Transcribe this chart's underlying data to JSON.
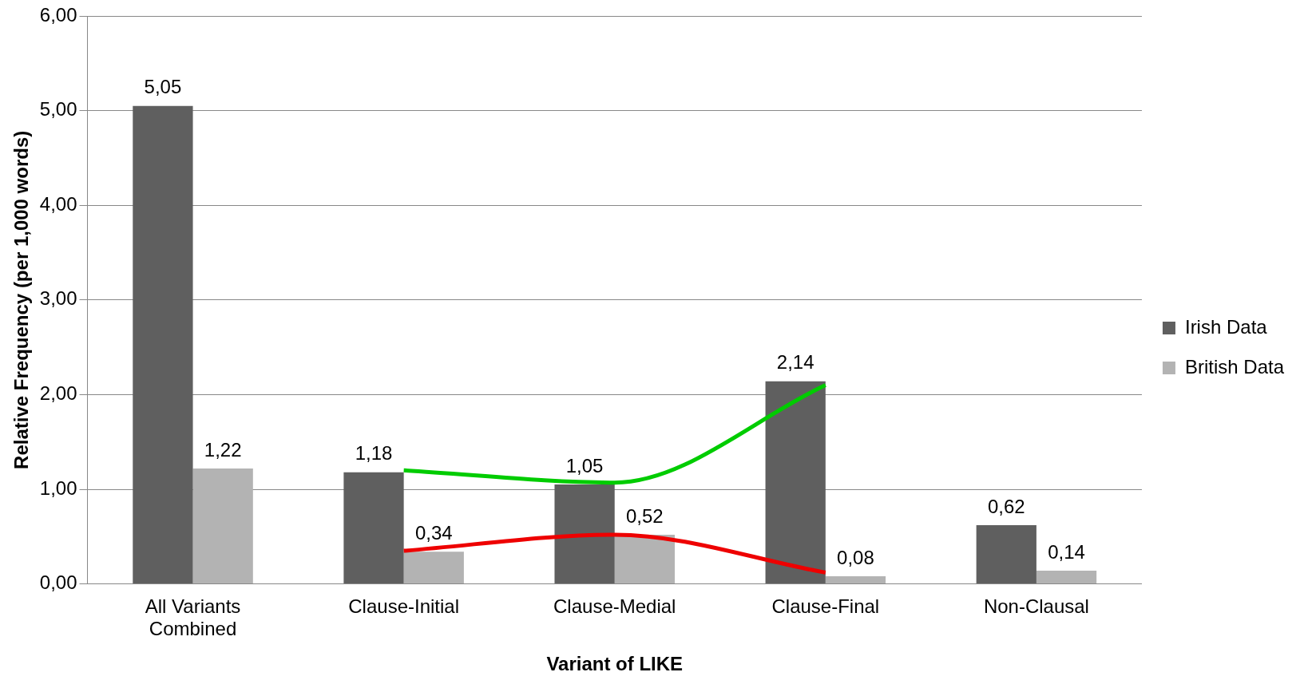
{
  "chart_data": {
    "type": "bar",
    "xlabel": "Variant of LIKE",
    "ylabel": "Relative Frequency (per 1,000 words)",
    "categories": [
      "All Variants Combined",
      "Clause-Initial",
      "Clause-Medial",
      "Clause-Final",
      "Non-Clausal"
    ],
    "series": [
      {
        "name": "Irish Data",
        "color": "#5f5f5f",
        "values": [
          5.05,
          1.18,
          1.05,
          2.14,
          0.62
        ],
        "value_labels": [
          "5,05",
          "1,18",
          "1,05",
          "2,14",
          "0,62"
        ]
      },
      {
        "name": "British Data",
        "color": "#b3b3b3",
        "values": [
          1.22,
          0.34,
          0.52,
          0.08,
          0.14
        ],
        "value_labels": [
          "1,22",
          "0,34",
          "0,52",
          "0,08",
          "0,14"
        ]
      },
      {
        "type": "line",
        "color": "#00cc00",
        "values": [
          null,
          1.2,
          1.07,
          2.1,
          null
        ]
      },
      {
        "type": "line",
        "color": "#ee0000",
        "values": [
          null,
          0.35,
          0.52,
          0.12,
          null
        ]
      }
    ],
    "ylim": [
      0,
      6
    ],
    "yticks": [
      {
        "value": 0,
        "label": "0,00"
      },
      {
        "value": 1,
        "label": "1,00"
      },
      {
        "value": 2,
        "label": "2,00"
      },
      {
        "value": 3,
        "label": "3,00"
      },
      {
        "value": 4,
        "label": "4,00"
      },
      {
        "value": 5,
        "label": "5,00"
      },
      {
        "value": 6,
        "label": "6,00"
      }
    ],
    "grid": "y",
    "legend": "right",
    "marker": "none"
  }
}
